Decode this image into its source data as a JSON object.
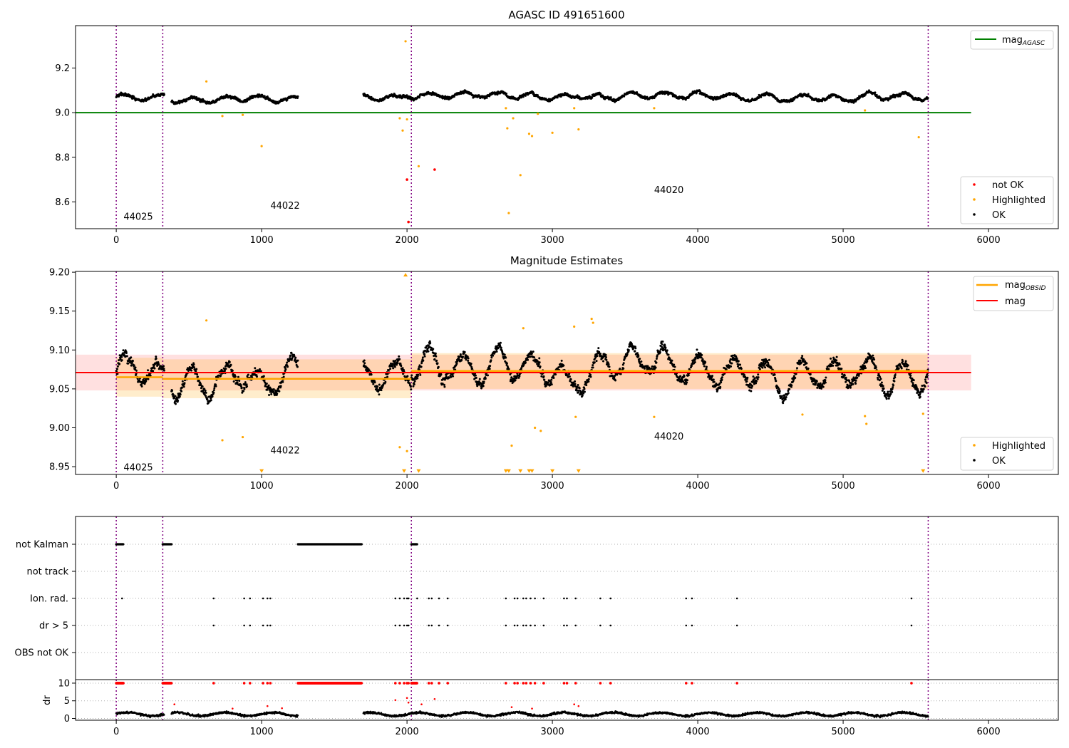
{
  "figure": {
    "title": "AGASC ID 491651600"
  },
  "chart_data": [
    {
      "type": "scatter",
      "title": "AGASC ID 491651600",
      "xlim": [
        -280,
        6480
      ],
      "ylim": [
        8.48,
        9.39
      ],
      "xticks": [
        0,
        1000,
        2000,
        3000,
        4000,
        5000,
        6000
      ],
      "yticks": [
        8.6,
        8.8,
        9.0,
        9.2
      ],
      "reference_line": {
        "name": "mag_AGASC",
        "value": 9.0,
        "x": [
          -280,
          5880
        ],
        "color": "#008000"
      },
      "obsid_boundaries": [
        0,
        320,
        2030,
        5585
      ],
      "obsid_labels": [
        {
          "text": "44025",
          "x": 50,
          "y": 8.52
        },
        {
          "text": "44022",
          "x": 1060,
          "y": 8.57
        },
        {
          "text": "44020",
          "x": 3700,
          "y": 8.64
        }
      ],
      "series": [
        {
          "name": "OK",
          "color": "#000000",
          "segments": [
            [
              0,
              330,
              9.07
            ],
            [
              380,
              1250,
              9.06
            ],
            [
              1700,
              2030,
              9.07
            ],
            [
              2030,
              5585,
              9.075
            ]
          ]
        },
        {
          "name": "Highlighted",
          "color": "#FFA500",
          "points": [
            [
              620,
              9.14
            ],
            [
              730,
              8.985
            ],
            [
              870,
              8.99
            ],
            [
              1000,
              8.85
            ],
            [
              1950,
              8.975
            ],
            [
              1970,
              8.92
            ],
            [
              1990,
              9.32
            ],
            [
              2000,
              8.97
            ],
            [
              2080,
              8.76
            ],
            [
              2680,
              9.02
            ],
            [
              2690,
              8.93
            ],
            [
              2700,
              8.55
            ],
            [
              2730,
              8.975
            ],
            [
              2780,
              8.72
            ],
            [
              2840,
              8.905
            ],
            [
              2860,
              8.895
            ],
            [
              2900,
              8.995
            ],
            [
              3000,
              8.91
            ],
            [
              3150,
              9.02
            ],
            [
              3180,
              8.925
            ],
            [
              3700,
              9.02
            ],
            [
              5150,
              9.01
            ],
            [
              5520,
              8.89
            ]
          ]
        },
        {
          "name": "not OK",
          "color": "#FF0000",
          "points": [
            [
              2000,
              8.7
            ],
            [
              2010,
              8.51
            ],
            [
              2190,
              8.745
            ]
          ]
        }
      ],
      "legend": {
        "upper-right": [
          "mag_AGASC"
        ],
        "lower-right": [
          "not OK",
          "Highlighted",
          "OK"
        ]
      }
    },
    {
      "type": "scatter",
      "title": "Magnitude Estimates",
      "xlim": [
        -280,
        6480
      ],
      "ylim": [
        8.94,
        9.201
      ],
      "xticks": [
        0,
        1000,
        2000,
        3000,
        4000,
        5000,
        6000
      ],
      "yticks": [
        8.95,
        9.0,
        9.05,
        9.1,
        9.15,
        9.2
      ],
      "mag": {
        "value": 9.071,
        "band": [
          9.048,
          9.094
        ],
        "color": "#FF0000"
      },
      "mag_obsid": [
        {
          "x": [
            0,
            320
          ],
          "value": 9.065,
          "band": [
            9.04,
            9.09
          ]
        },
        {
          "x": [
            320,
            2030
          ],
          "value": 9.063,
          "band": [
            9.038,
            9.088
          ]
        },
        {
          "x": [
            2030,
            5585
          ],
          "value": 9.073,
          "band": [
            9.05,
            9.096
          ]
        }
      ],
      "obsid_boundaries": [
        0,
        320,
        2030,
        5585
      ],
      "obsid_labels": [
        {
          "text": "44025",
          "x": 50,
          "y": 8.945
        },
        {
          "text": "44022",
          "x": 1060,
          "y": 8.967
        },
        {
          "text": "44020",
          "x": 3700,
          "y": 8.985
        }
      ],
      "series": [
        {
          "name": "OK",
          "color": "#000000",
          "segments": [
            [
              0,
              330,
              9.07
            ],
            [
              380,
              1250,
              9.06
            ],
            [
              1700,
              2030,
              9.07
            ],
            [
              2030,
              5585,
              9.075
            ]
          ]
        },
        {
          "name": "Highlighted",
          "color": "#FFA500",
          "points": [
            [
              620,
              9.138
            ],
            [
              730,
              8.984
            ],
            [
              870,
              8.988
            ],
            [
              1950,
              8.975
            ],
            [
              2000,
              8.97
            ],
            [
              2720,
              8.977
            ],
            [
              2800,
              9.128
            ],
            [
              2880,
              9.0
            ],
            [
              2920,
              8.996
            ],
            [
              3150,
              9.13
            ],
            [
              3160,
              9.014
            ],
            [
              3270,
              9.14
            ],
            [
              3280,
              9.135
            ],
            [
              3700,
              9.014
            ],
            [
              4720,
              9.017
            ],
            [
              5150,
              9.015
            ],
            [
              5160,
              9.005
            ],
            [
              5550,
              9.018
            ]
          ]
        },
        {
          "name": "out of range",
          "color": "#FFA500",
          "points": [
            [
              1000,
              8.943
            ],
            [
              1980,
              8.943
            ],
            [
              2080,
              8.943
            ],
            [
              2680,
              8.943
            ],
            [
              2700,
              8.943
            ],
            [
              2780,
              8.943
            ],
            [
              2840,
              8.943
            ],
            [
              2860,
              8.943
            ],
            [
              3000,
              8.943
            ],
            [
              3180,
              8.943
            ],
            [
              5550,
              8.943
            ]
          ],
          "top_points": [
            [
              1990,
              9.199
            ]
          ]
        }
      ],
      "legend": {
        "upper-right": [
          "mag_OBSID",
          "mag"
        ],
        "lower-right": [
          "Highlighted",
          "OK"
        ]
      }
    },
    {
      "type": "scatter",
      "title": "",
      "xlim": [
        -280,
        6480
      ],
      "xticks": [
        0,
        1000,
        2000,
        3000,
        4000,
        5000,
        6000
      ],
      "flag_rows": [
        "not Kalman",
        "not track",
        "Ion. rad.",
        "dr > 5",
        "OBS not OK"
      ],
      "flags": {
        "not Kalman": [
          [
            0,
            50
          ],
          [
            320,
            380
          ],
          [
            1250,
            1690
          ],
          [
            2030,
            2070
          ]
        ],
        "not track": [],
        "Ion. rad.": [
          40,
          670,
          880,
          920,
          1010,
          1040,
          1060,
          1920,
          1950,
          1980,
          2000,
          2010,
          2070,
          2150,
          2170,
          2220,
          2280,
          2680,
          2740,
          2760,
          2800,
          2820,
          2850,
          2880,
          2940,
          3080,
          3100,
          3160,
          3330,
          3400,
          3920,
          3960,
          4270,
          5470
        ],
        "dr > 5": [
          670,
          880,
          920,
          1010,
          1040,
          1060,
          1920,
          1950,
          1980,
          2000,
          2010,
          2150,
          2170,
          2220,
          2280,
          2680,
          2740,
          2760,
          2800,
          2820,
          2850,
          2880,
          2940,
          3080,
          3100,
          3160,
          3330,
          3400,
          3920,
          3960,
          4270,
          5470
        ],
        "OBS not OK": []
      },
      "dr": {
        "ylabel": "dr",
        "yticks": [
          0,
          5,
          10
        ],
        "ylim": [
          -0.5,
          11
        ],
        "baseline": 1.2,
        "clipped_value": 10,
        "clipped": [
          [
            0,
            50
          ],
          [
            320,
            380
          ],
          [
            1250,
            1690
          ],
          [
            2030,
            2070
          ]
        ],
        "clipped_points": [
          670,
          880,
          920,
          1010,
          1040,
          1060,
          1920,
          1950,
          1980,
          2000,
          2010,
          2150,
          2170,
          2220,
          2280,
          2680,
          2740,
          2760,
          2800,
          2820,
          2850,
          2880,
          2940,
          3080,
          3100,
          3160,
          3330,
          3400,
          3920,
          3960,
          4270,
          5470
        ],
        "red_points": [
          [
            400,
            4.0
          ],
          [
            800,
            2.8
          ],
          [
            1040,
            3.5
          ],
          [
            1140,
            2.9
          ],
          [
            1920,
            5.2
          ],
          [
            2000,
            5.8
          ],
          [
            2010,
            4.5
          ],
          [
            2100,
            4.0
          ],
          [
            2190,
            5.5
          ],
          [
            2720,
            3.2
          ],
          [
            2860,
            2.8
          ],
          [
            3150,
            4.0
          ],
          [
            3180,
            3.5
          ]
        ],
        "segments": [
          [
            0,
            330
          ],
          [
            380,
            1250
          ],
          [
            1700,
            2030
          ],
          [
            2030,
            5585
          ]
        ]
      },
      "obsid_boundaries": [
        0,
        320,
        2030,
        5585
      ]
    }
  ]
}
